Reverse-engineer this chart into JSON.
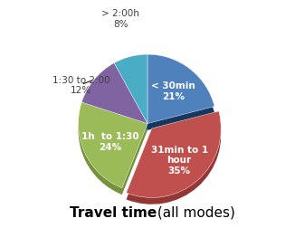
{
  "labels_inside": [
    "< 30min\n21%",
    "31min to 1\nhour\n35%",
    "1h to 1:30\n24%"
  ],
  "labels_outside": [
    {
      "text": "1:30 to 2:00\n12%",
      "idx": 3
    },
    {
      "text": "> 2:00h\n8%",
      "idx": 4
    }
  ],
  "sizes": [
    21,
    35,
    24,
    12,
    8
  ],
  "colors_top": [
    "#4f81bd",
    "#c0504d",
    "#9bbb59",
    "#8064a2",
    "#4bacc6"
  ],
  "colors_side": [
    "#17375e",
    "#943634",
    "#76923c",
    "#5f497a",
    "#17728f"
  ],
  "explode": [
    0,
    0.07,
    0,
    0,
    0
  ],
  "startangle": 90,
  "title_bold": "Travel time",
  "title_regular": " (all modes)",
  "title_fontsize": 11,
  "background_color": "#ffffff",
  "depth": 0.12
}
